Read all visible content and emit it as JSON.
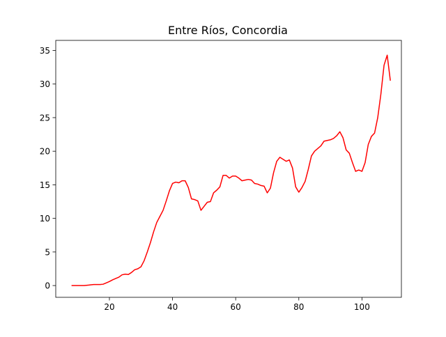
{
  "chart_data": {
    "type": "line",
    "title": "Entre Ríos, Concordia",
    "xlabel": "",
    "ylabel": "",
    "xlim": [
      3,
      112.5
    ],
    "ylim": [
      -1.75,
      36.5
    ],
    "xticks": [
      20,
      40,
      60,
      80,
      100
    ],
    "yticks": [
      0,
      5,
      10,
      15,
      20,
      25,
      30,
      35
    ],
    "grid": false,
    "legend": false,
    "series": [
      {
        "color": "#ff0000",
        "x": [
          8,
          9,
          10,
          11,
          12,
          13,
          14,
          15,
          16,
          17,
          18,
          19,
          20,
          21,
          22,
          23,
          24,
          25,
          26,
          27,
          28,
          29,
          30,
          31,
          32,
          33,
          34,
          35,
          36,
          37,
          38,
          39,
          40,
          41,
          42,
          43,
          44,
          45,
          46,
          47,
          48,
          49,
          50,
          51,
          52,
          53,
          54,
          55,
          56,
          57,
          58,
          59,
          60,
          61,
          62,
          63,
          64,
          65,
          66,
          67,
          68,
          69,
          70,
          71,
          72,
          73,
          74,
          75,
          76,
          77,
          78,
          79,
          80,
          81,
          82,
          83,
          84,
          85,
          86,
          87,
          88,
          89,
          90,
          91,
          92,
          93,
          94,
          95,
          96,
          97,
          98,
          99,
          100,
          101,
          102,
          103,
          104,
          105,
          106,
          107,
          108,
          109
        ],
        "y": [
          0.0,
          0.0,
          0.0,
          0.0,
          0.0,
          0.05,
          0.1,
          0.15,
          0.15,
          0.15,
          0.2,
          0.4,
          0.6,
          0.85,
          1.05,
          1.25,
          1.6,
          1.7,
          1.65,
          1.95,
          2.35,
          2.5,
          2.8,
          3.7,
          5.0,
          6.4,
          8.0,
          9.4,
          10.3,
          11.2,
          12.6,
          14.1,
          15.2,
          15.4,
          15.3,
          15.6,
          15.6,
          14.6,
          12.9,
          12.8,
          12.6,
          11.2,
          11.8,
          12.4,
          12.5,
          13.8,
          14.2,
          14.7,
          16.4,
          16.4,
          16.0,
          16.3,
          16.3,
          16.0,
          15.6,
          15.7,
          15.8,
          15.7,
          15.2,
          15.1,
          14.9,
          14.8,
          13.8,
          14.5,
          16.8,
          18.5,
          19.1,
          18.8,
          18.5,
          18.7,
          17.5,
          14.7,
          13.9,
          14.6,
          15.5,
          17.3,
          19.3,
          20.0,
          20.4,
          20.8,
          21.5,
          21.6,
          21.7,
          21.9,
          22.3,
          22.9,
          22.0,
          20.2,
          19.7,
          18.3,
          17.0,
          17.2,
          17.0,
          18.3,
          21.0,
          22.2,
          22.7,
          25.0,
          28.5,
          32.8,
          34.3,
          30.5
        ]
      }
    ]
  }
}
